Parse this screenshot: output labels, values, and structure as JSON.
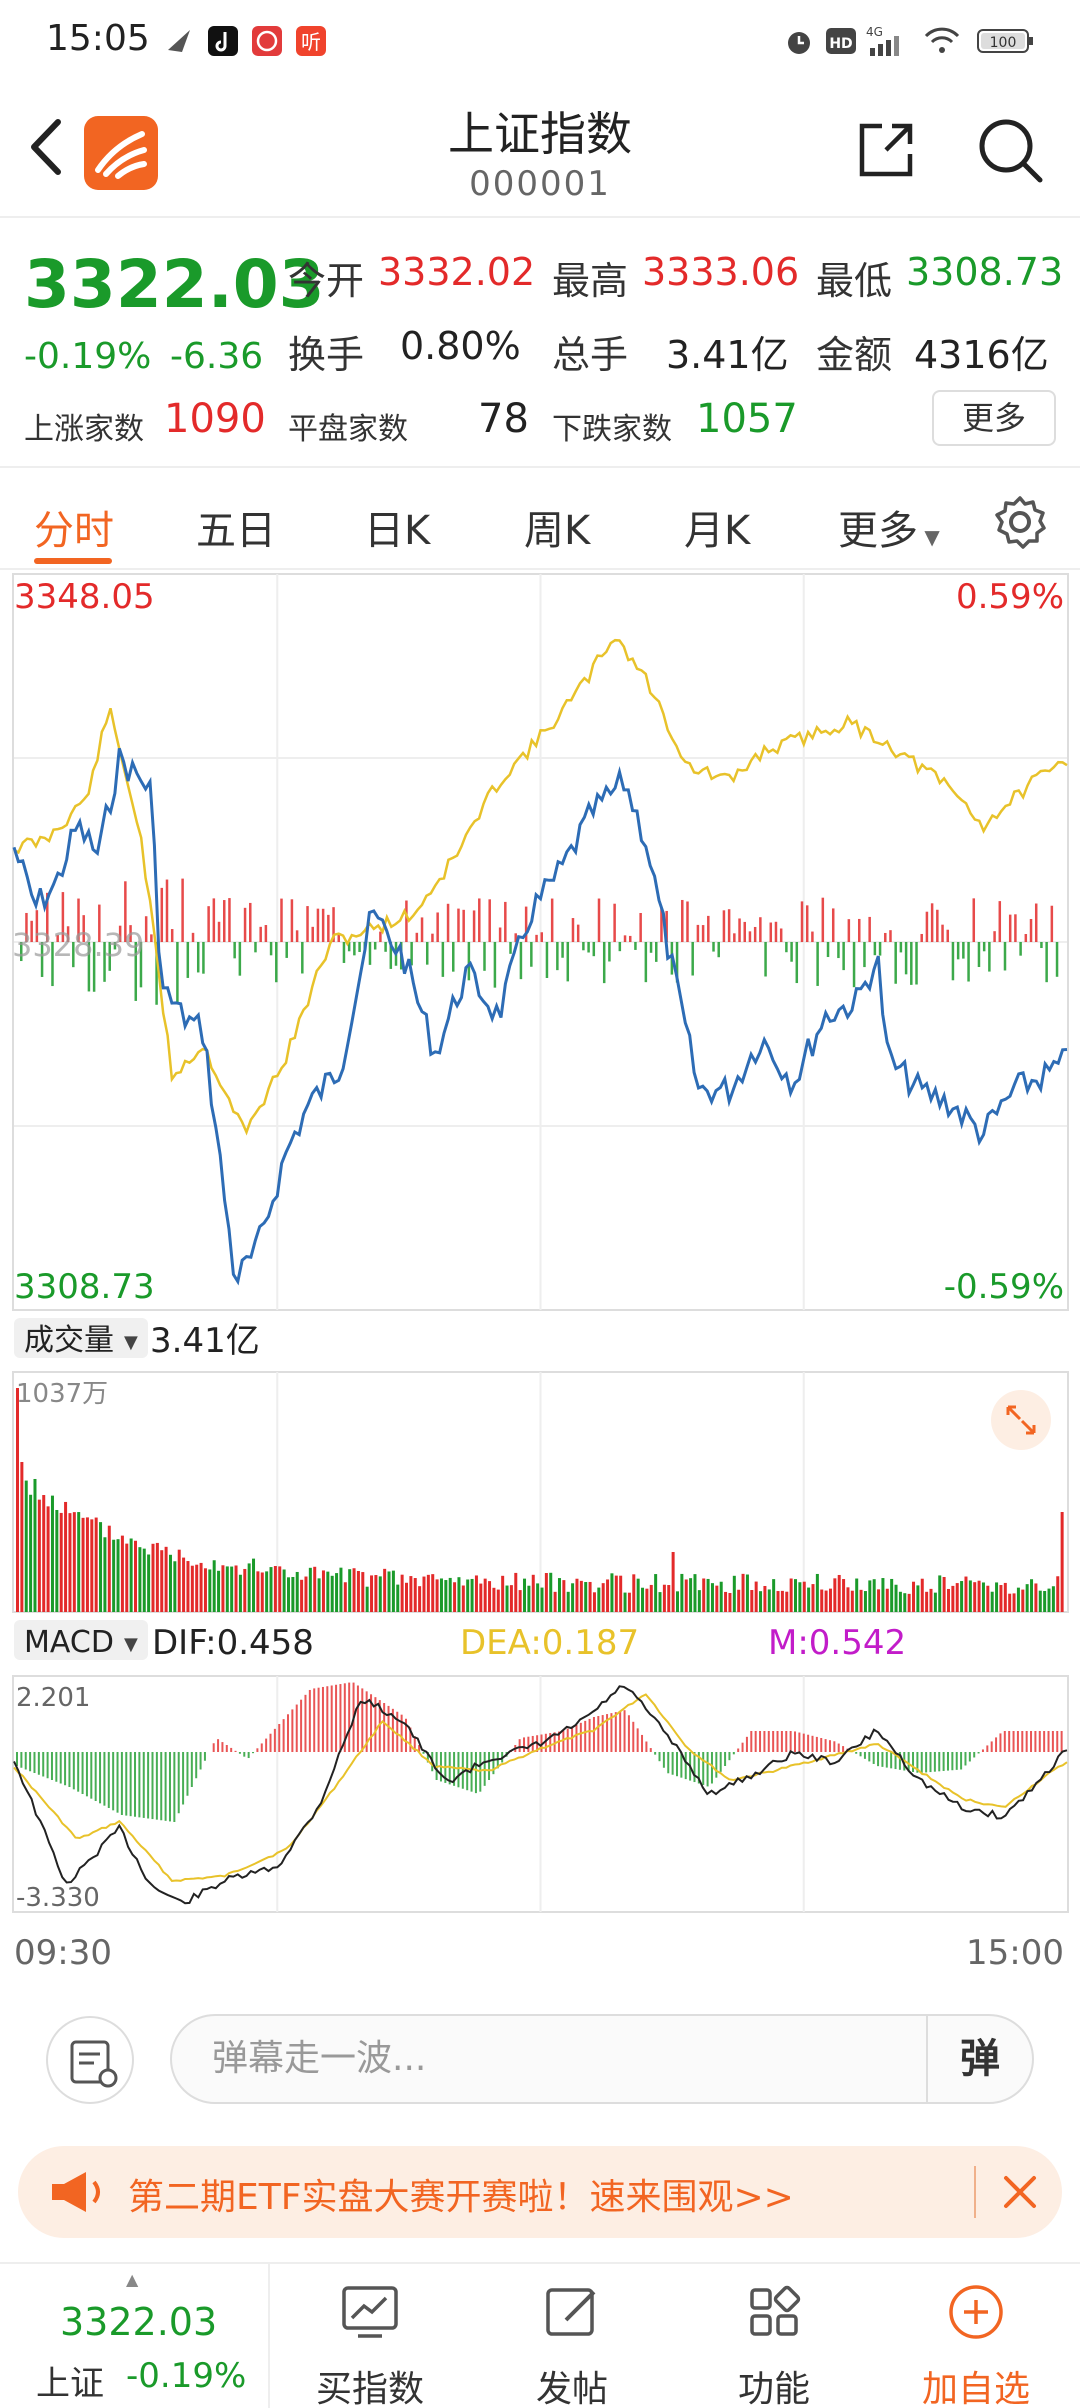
{
  "status_bar": {
    "time": "15:05",
    "network": "4G",
    "hd": "HD",
    "battery": "100"
  },
  "header": {
    "title": "上证指数",
    "code": "000001"
  },
  "quote": {
    "price": "3322.03",
    "change_pct": "-0.19%",
    "change": "-6.36",
    "open_label": "今开",
    "open_value": "3332.02",
    "high_label": "最高",
    "high_value": "3333.06",
    "low_label": "最低",
    "low_value": "3308.73",
    "turnover_label": "换手",
    "turnover_value": "0.80%",
    "volume_label": "总手",
    "volume_value": "3.41亿",
    "amount_label": "金额",
    "amount_value": "4316亿",
    "up_label": "上涨家数",
    "up_value": "1090",
    "flat_label": "平盘家数",
    "flat_value": "78",
    "down_label": "下跌家数",
    "down_value": "1057",
    "more_label": "更多"
  },
  "tabs": [
    "分时",
    "五日",
    "日K",
    "周K",
    "月K",
    "更多"
  ],
  "chart": {
    "top_price": "3348.05",
    "top_pct": "0.59%",
    "bottom_price": "3308.73",
    "bottom_pct": "-0.59%",
    "mid_price": "3328.39",
    "volume_select": "成交量",
    "volume_total": "3.41亿",
    "volume_max": "1037万",
    "macd_select": "MACD",
    "dif": "DIF:0.458",
    "dea": "DEA:0.187",
    "m": "M:0.542",
    "macd_max": "2.201",
    "macd_min": "-3.330",
    "time_start": "09:30",
    "time_end": "15:00"
  },
  "chart_data": {
    "type": "line",
    "x_range": [
      "09:30",
      "15:00"
    ],
    "ylim": [
      3308.73,
      3348.05
    ],
    "series": [],
    "colors": {
      "up": "#e32a2a",
      "down": "#1a9a2a",
      "price_line": "#2d6cb5",
      "avg_line": "#e8c22a",
      "macd_m": "#c21cc9"
    }
  },
  "comment": {
    "placeholder": "弹幕走一波...",
    "danmu_label": "弹"
  },
  "banner": {
    "text": "第二期ETF实盘大赛开赛啦！速来围观>>"
  },
  "bottom_bar": {
    "quote_price": "3322.03",
    "quote_name": "上证",
    "quote_pct": "-0.19%",
    "buy_label": "买指数",
    "post_label": "发帖",
    "func_label": "功能",
    "fav_label": "加自选"
  }
}
